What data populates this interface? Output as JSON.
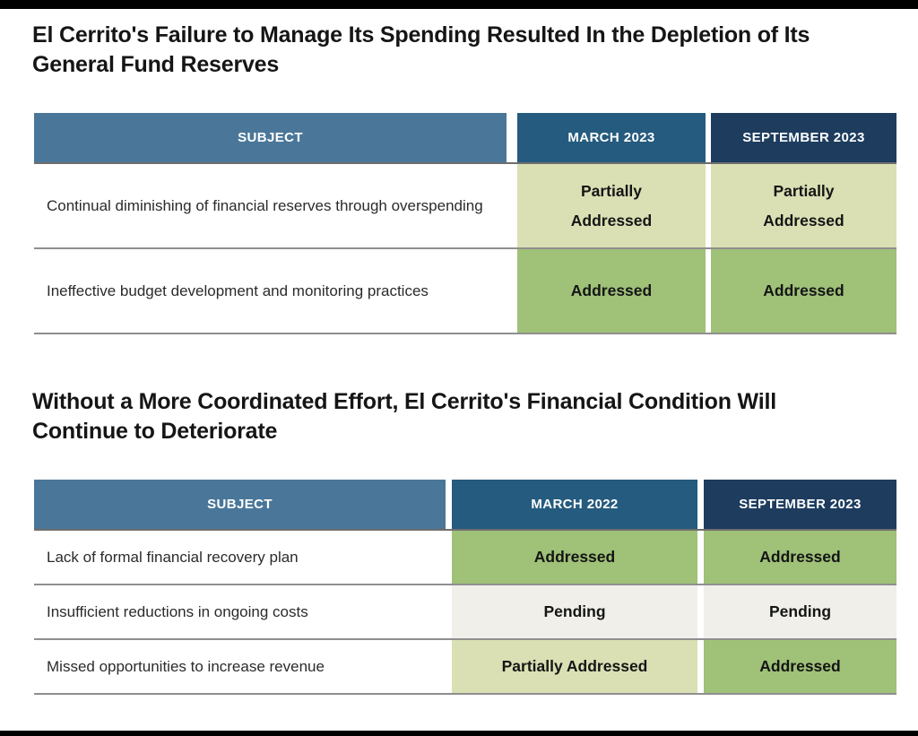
{
  "colors": {
    "bar": "#000000",
    "header_subject": "#4a7799",
    "header_col1": "#255b7e",
    "header_col2": "#1d3c5e",
    "addressed": "#9fc178",
    "partially": "#dae0b4",
    "pending": "#f0efe9"
  },
  "section1": {
    "heading": "El Cerrito's Failure to Manage Its Spending Resulted In the Depletion of Its General Fund Reserves",
    "table": {
      "columns": [
        "SUBJECT",
        "MARCH 2023",
        "SEPTEMBER 2023"
      ],
      "rows": [
        {
          "subject": "Continual diminishing of financial reserves through overspending",
          "col1": {
            "label": "Partially Addressed",
            "status": "partially"
          },
          "col2": {
            "label": "Partially Addressed",
            "status": "partially"
          }
        },
        {
          "subject": "Ineffective budget development and monitoring practices",
          "col1": {
            "label": "Addressed",
            "status": "addressed"
          },
          "col2": {
            "label": "Addressed",
            "status": "addressed"
          }
        }
      ]
    }
  },
  "section2": {
    "heading": "Without a More Coordinated Effort, El Cerrito's Financial Condition Will Continue to Deteriorate",
    "table": {
      "columns": [
        "SUBJECT",
        "MARCH 2022",
        "SEPTEMBER 2023"
      ],
      "rows": [
        {
          "subject": "Lack of formal financial recovery plan",
          "col1": {
            "label": "Addressed",
            "status": "addressed"
          },
          "col2": {
            "label": "Addressed",
            "status": "addressed"
          }
        },
        {
          "subject": "Insufficient reductions in ongoing costs",
          "col1": {
            "label": "Pending",
            "status": "pending"
          },
          "col2": {
            "label": "Pending",
            "status": "pending"
          }
        },
        {
          "subject": "Missed opportunities to increase revenue",
          "col1": {
            "label": "Partially Addressed",
            "status": "partially"
          },
          "col2": {
            "label": "Addressed",
            "status": "addressed"
          }
        }
      ]
    }
  }
}
